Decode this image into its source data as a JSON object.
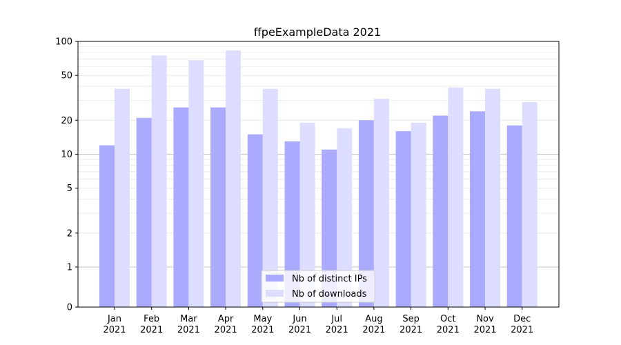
{
  "chart_data": {
    "type": "bar",
    "title": "ffpeExampleData 2021",
    "xlabel": "",
    "ylabel": "",
    "categories": [
      "Jan\n2021",
      "Feb\n2021",
      "Mar\n2021",
      "Apr\n2021",
      "May\n2021",
      "Jun\n2021",
      "Jul\n2021",
      "Aug\n2021",
      "Sep\n2021",
      "Oct\n2021",
      "Nov\n2021",
      "Dec\n2021"
    ],
    "series": [
      {
        "name": "Nb of distinct IPs",
        "color": "#aaaaff",
        "values": [
          12,
          21,
          26,
          26,
          15,
          13,
          11,
          20,
          16,
          22,
          24,
          18
        ]
      },
      {
        "name": "Nb of downloads",
        "color": "#ddddff",
        "values": [
          38,
          75,
          68,
          83,
          38,
          19,
          17,
          31,
          19,
          39,
          38,
          29
        ]
      }
    ],
    "y_scale": "symlog",
    "ylim": [
      0,
      100
    ],
    "y_ticks": [
      0,
      1,
      2,
      5,
      10,
      20,
      50,
      100
    ],
    "grid": true,
    "legend_position": "lower center"
  }
}
